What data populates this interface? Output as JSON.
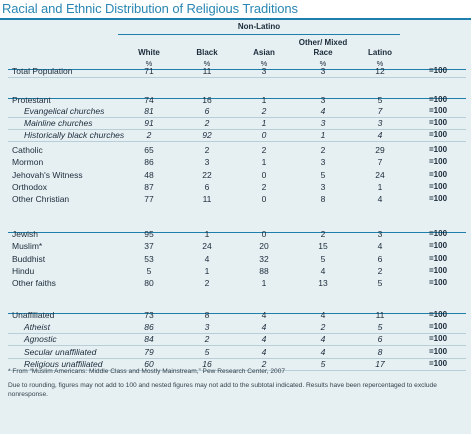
{
  "title": "Racial and Ethnic Distribution of Religious Traditions",
  "group_header": "Non-Latino",
  "columns": [
    "White",
    "Black",
    "Asian",
    "Other/ Mixed Race",
    "Latino"
  ],
  "units": [
    "%",
    "%",
    "%",
    "%",
    "%"
  ],
  "rows": [
    {
      "label": "Total Population",
      "values": [
        "71",
        "11",
        "3",
        "3",
        "12"
      ],
      "total": "=100",
      "sub": false
    },
    {
      "label": "Protestant",
      "values": [
        "74",
        "16",
        "1",
        "3",
        "5"
      ],
      "total": "=100",
      "sub": false
    },
    {
      "label": "Evangelical churches",
      "values": [
        "81",
        "6",
        "2",
        "4",
        "7"
      ],
      "total": "=100",
      "sub": true
    },
    {
      "label": "Mainline churches",
      "values": [
        "91",
        "2",
        "1",
        "3",
        "3"
      ],
      "total": "=100",
      "sub": true
    },
    {
      "label": "Historically black churches",
      "values": [
        "2",
        "92",
        "0",
        "1",
        "4"
      ],
      "total": "=100",
      "sub": true
    },
    {
      "label": "Catholic",
      "values": [
        "65",
        "2",
        "2",
        "2",
        "29"
      ],
      "total": "=100",
      "sub": false
    },
    {
      "label": "Mormon",
      "values": [
        "86",
        "3",
        "1",
        "3",
        "7"
      ],
      "total": "=100",
      "sub": false
    },
    {
      "label": "Jehovah's Witness",
      "values": [
        "48",
        "22",
        "0",
        "5",
        "24"
      ],
      "total": "=100",
      "sub": false
    },
    {
      "label": "Orthodox",
      "values": [
        "87",
        "6",
        "2",
        "3",
        "1"
      ],
      "total": "=100",
      "sub": false
    },
    {
      "label": "Other Christian",
      "values": [
        "77",
        "11",
        "0",
        "8",
        "4"
      ],
      "total": "=100",
      "sub": false
    },
    {
      "label": "Jewish",
      "values": [
        "95",
        "1",
        "0",
        "2",
        "3"
      ],
      "total": "=100",
      "sub": false
    },
    {
      "label": "Muslim*",
      "values": [
        "37",
        "24",
        "20",
        "15",
        "4"
      ],
      "total": "=100",
      "sub": false
    },
    {
      "label": "Buddhist",
      "values": [
        "53",
        "4",
        "32",
        "5",
        "6"
      ],
      "total": "=100",
      "sub": false
    },
    {
      "label": "Hindu",
      "values": [
        "5",
        "1",
        "88",
        "4",
        "2"
      ],
      "total": "=100",
      "sub": false
    },
    {
      "label": "Other faiths",
      "values": [
        "80",
        "2",
        "1",
        "13",
        "5"
      ],
      "total": "=100",
      "sub": false
    },
    {
      "label": "Unaffiliated",
      "values": [
        "73",
        "8",
        "4",
        "4",
        "11"
      ],
      "total": "=100",
      "sub": false
    },
    {
      "label": "Atheist",
      "values": [
        "86",
        "3",
        "4",
        "2",
        "5"
      ],
      "total": "=100",
      "sub": true
    },
    {
      "label": "Agnostic",
      "values": [
        "84",
        "2",
        "4",
        "4",
        "6"
      ],
      "total": "=100",
      "sub": true
    },
    {
      "label": "Secular unaffiliated",
      "values": [
        "79",
        "5",
        "4",
        "4",
        "8"
      ],
      "total": "=100",
      "sub": true
    },
    {
      "label": "Religious unaffiliated",
      "values": [
        "60",
        "16",
        "2",
        "5",
        "17"
      ],
      "total": "=100",
      "sub": true
    }
  ],
  "footnote": "* From “Muslim Americans: Middle Class and Mostly Mainstream,” Pew Research Center, 2007",
  "note": "Due to rounding, figures may not add to 100 and nested figures may not add to the subtotal indicated. Results have been repercentaged to exclude nonresponse."
}
